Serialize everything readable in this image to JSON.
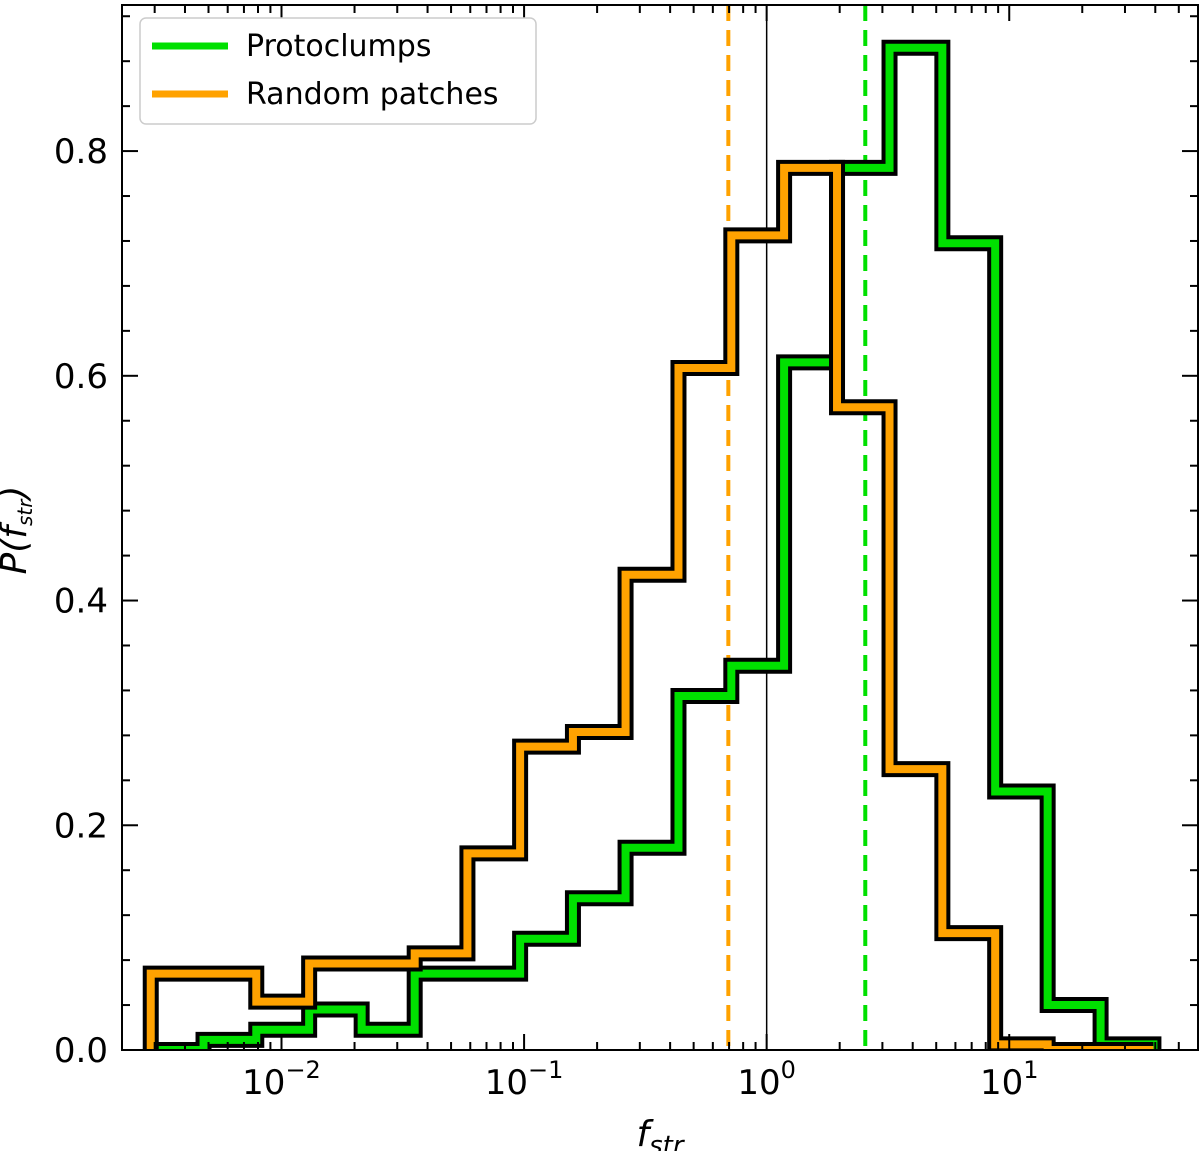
{
  "chart_data": {
    "type": "step-histogram",
    "xlabel": "f",
    "xlabel_sub": "str",
    "ylabel": "P(f",
    "ylabel_sub": "str",
    "ylabel_close": ")",
    "xscale": "log",
    "xlim": [
      0.0022,
      60
    ],
    "ylim": [
      0,
      0.93
    ],
    "yticks": [
      {
        "value": 0.0,
        "label": "0.0"
      },
      {
        "value": 0.2,
        "label": "0.2"
      },
      {
        "value": 0.4,
        "label": "0.4"
      },
      {
        "value": 0.6,
        "label": "0.6"
      },
      {
        "value": 0.8,
        "label": "0.8"
      }
    ],
    "xticks": [
      {
        "value": 0.01,
        "base": "10",
        "exp": "−2"
      },
      {
        "value": 0.1,
        "base": "10",
        "exp": "−1"
      },
      {
        "value": 1,
        "base": "10",
        "exp": "0"
      },
      {
        "value": 10,
        "base": "10",
        "exp": "1"
      }
    ],
    "bin_edges": [
      0.00289,
      0.00477,
      0.00787,
      0.013,
      0.0214,
      0.0354,
      0.0584,
      0.0963,
      0.159,
      0.262,
      0.433,
      0.715,
      1.18,
      1.95,
      3.21,
      5.3,
      8.75,
      14.4,
      23.8,
      39.3
    ],
    "legend_position": "upper-left",
    "series": [
      {
        "name": "Protoclumps",
        "color": "#00e000",
        "values": [
          0.0,
          0.009,
          0.018,
          0.036,
          0.018,
          0.068,
          0.068,
          0.099,
          0.135,
          0.18,
          0.315,
          0.342,
          0.612,
          0.785,
          0.892,
          0.718,
          0.23,
          0.04,
          0.005
        ]
      },
      {
        "name": "Random patches",
        "color": "#ffa200",
        "values": [
          0.068,
          0.068,
          0.043,
          0.077,
          0.077,
          0.086,
          0.175,
          0.27,
          0.283,
          0.423,
          0.607,
          0.725,
          0.785,
          0.572,
          0.25,
          0.104,
          0.005,
          0.0,
          0.0
        ]
      }
    ],
    "vlines": [
      {
        "x": 1.0,
        "color": "#000000",
        "style": "solid",
        "width": 1.5
      },
      {
        "x": 0.695,
        "color": "#ffa200",
        "style": "dashed",
        "width": 4
      },
      {
        "x": 2.55,
        "color": "#00e000",
        "style": "dashed",
        "width": 4
      }
    ]
  }
}
